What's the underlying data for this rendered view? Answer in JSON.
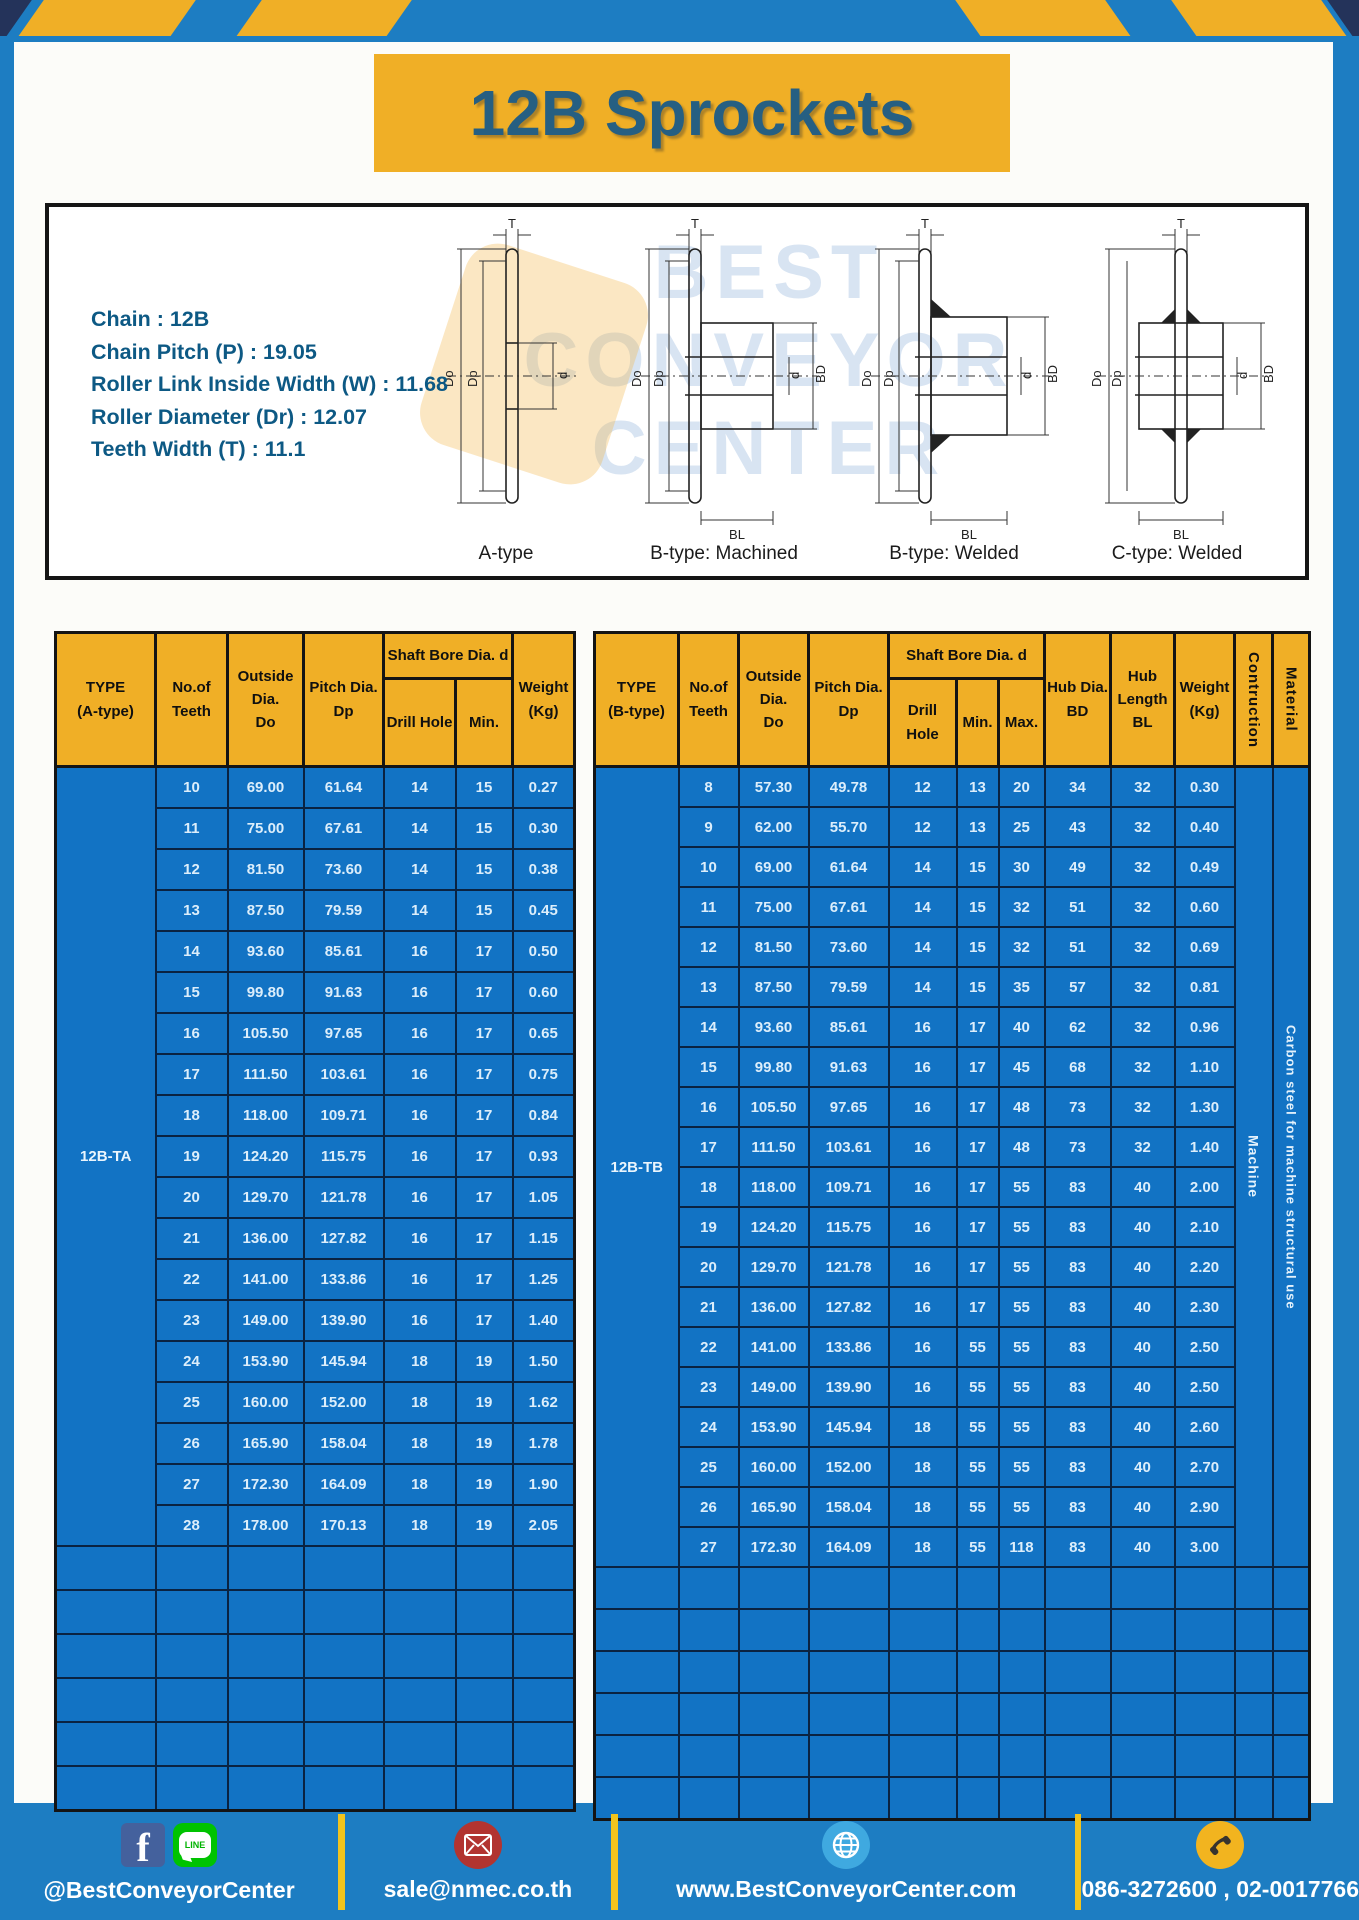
{
  "title": "12B Sprockets",
  "specs": [
    "Chain  :  12B",
    "Chain Pitch (P)  :  19.05",
    "Roller Link Inside Width (W) : 11.68",
    "Roller Diameter (Dr)  : 12.07",
    "Teeth Width (T)  :  11.1"
  ],
  "drawings": {
    "captions": [
      "A-type",
      "B-type: Machined",
      "B-type: Welded",
      "C-type: Welded"
    ],
    "labels": {
      "t": "T",
      "do": "Do",
      "dp": "Dp",
      "d": "d",
      "bd": "BD",
      "bl": "BL"
    },
    "watermark": [
      "BEST",
      "CONVEYOR",
      "CENTER"
    ]
  },
  "table_a": {
    "head": {
      "type": "TYPE\n(A-type)",
      "teeth": "No.of\nTeeth",
      "od": "Outside\nDia.\nDo",
      "pd": "Pitch Dia.\nDp",
      "bore": "Shaft Bore Dia. d",
      "drill": "Drill Hole",
      "min": "Min.",
      "weight": "Weight\n(Kg)"
    },
    "type_label": "12B-TA",
    "col_count": 7,
    "empty_rows": 6,
    "rows": [
      [
        "10",
        "69.00",
        "61.64",
        "14",
        "15",
        "0.27"
      ],
      [
        "11",
        "75.00",
        "67.61",
        "14",
        "15",
        "0.30"
      ],
      [
        "12",
        "81.50",
        "73.60",
        "14",
        "15",
        "0.38"
      ],
      [
        "13",
        "87.50",
        "79.59",
        "14",
        "15",
        "0.45"
      ],
      [
        "14",
        "93.60",
        "85.61",
        "16",
        "17",
        "0.50"
      ],
      [
        "15",
        "99.80",
        "91.63",
        "16",
        "17",
        "0.60"
      ],
      [
        "16",
        "105.50",
        "97.65",
        "16",
        "17",
        "0.65"
      ],
      [
        "17",
        "111.50",
        "103.61",
        "16",
        "17",
        "0.75"
      ],
      [
        "18",
        "118.00",
        "109.71",
        "16",
        "17",
        "0.84"
      ],
      [
        "19",
        "124.20",
        "115.75",
        "16",
        "17",
        "0.93"
      ],
      [
        "20",
        "129.70",
        "121.78",
        "16",
        "17",
        "1.05"
      ],
      [
        "21",
        "136.00",
        "127.82",
        "16",
        "17",
        "1.15"
      ],
      [
        "22",
        "141.00",
        "133.86",
        "16",
        "17",
        "1.25"
      ],
      [
        "23",
        "149.00",
        "139.90",
        "16",
        "17",
        "1.40"
      ],
      [
        "24",
        "153.90",
        "145.94",
        "18",
        "19",
        "1.50"
      ],
      [
        "25",
        "160.00",
        "152.00",
        "18",
        "19",
        "1.62"
      ],
      [
        "26",
        "165.90",
        "158.04",
        "18",
        "19",
        "1.78"
      ],
      [
        "27",
        "172.30",
        "164.09",
        "18",
        "19",
        "1.90"
      ],
      [
        "28",
        "178.00",
        "170.13",
        "18",
        "19",
        "2.05"
      ]
    ]
  },
  "table_b": {
    "head": {
      "type": "TYPE\n(B-type)",
      "teeth": "No.of\nTeeth",
      "od": "Outside\nDia.\nDo",
      "pd": "Pitch Dia.\nDp",
      "bore": "Shaft Bore Dia. d",
      "drill": "Drill Hole",
      "min": "Min.",
      "max": "Max.",
      "bd": "Hub Dia.\nBD",
      "bl": "Hub\nLength\nBL",
      "weight": "Weight\n(Kg)",
      "construction": "Contruction",
      "material": "Material"
    },
    "type_label": "12B-TB",
    "construction": "Machine",
    "material": "Carbon steel for machine structural use",
    "col_count": 12,
    "empty_rows": 6,
    "rows": [
      [
        "8",
        "57.30",
        "49.78",
        "12",
        "13",
        "20",
        "34",
        "32",
        "0.30"
      ],
      [
        "9",
        "62.00",
        "55.70",
        "12",
        "13",
        "25",
        "43",
        "32",
        "0.40"
      ],
      [
        "10",
        "69.00",
        "61.64",
        "14",
        "15",
        "30",
        "49",
        "32",
        "0.49"
      ],
      [
        "11",
        "75.00",
        "67.61",
        "14",
        "15",
        "32",
        "51",
        "32",
        "0.60"
      ],
      [
        "12",
        "81.50",
        "73.60",
        "14",
        "15",
        "32",
        "51",
        "32",
        "0.69"
      ],
      [
        "13",
        "87.50",
        "79.59",
        "14",
        "15",
        "35",
        "57",
        "32",
        "0.81"
      ],
      [
        "14",
        "93.60",
        "85.61",
        "16",
        "17",
        "40",
        "62",
        "32",
        "0.96"
      ],
      [
        "15",
        "99.80",
        "91.63",
        "16",
        "17",
        "45",
        "68",
        "32",
        "1.10"
      ],
      [
        "16",
        "105.50",
        "97.65",
        "16",
        "17",
        "48",
        "73",
        "32",
        "1.30"
      ],
      [
        "17",
        "111.50",
        "103.61",
        "16",
        "17",
        "48",
        "73",
        "32",
        "1.40"
      ],
      [
        "18",
        "118.00",
        "109.71",
        "16",
        "17",
        "55",
        "83",
        "40",
        "2.00"
      ],
      [
        "19",
        "124.20",
        "115.75",
        "16",
        "17",
        "55",
        "83",
        "40",
        "2.10"
      ],
      [
        "20",
        "129.70",
        "121.78",
        "16",
        "17",
        "55",
        "83",
        "40",
        "2.20"
      ],
      [
        "21",
        "136.00",
        "127.82",
        "16",
        "17",
        "55",
        "83",
        "40",
        "2.30"
      ],
      [
        "22",
        "141.00",
        "133.86",
        "16",
        "55",
        "55",
        "83",
        "40",
        "2.50"
      ],
      [
        "23",
        "149.00",
        "139.90",
        "16",
        "55",
        "55",
        "83",
        "40",
        "2.50"
      ],
      [
        "24",
        "153.90",
        "145.94",
        "18",
        "55",
        "55",
        "83",
        "40",
        "2.60"
      ],
      [
        "25",
        "160.00",
        "152.00",
        "18",
        "55",
        "55",
        "83",
        "40",
        "2.70"
      ],
      [
        "26",
        "165.90",
        "158.04",
        "18",
        "55",
        "55",
        "83",
        "40",
        "2.90"
      ],
      [
        "27",
        "172.30",
        "164.09",
        "18",
        "55",
        "118",
        "83",
        "40",
        "3.00"
      ]
    ]
  },
  "footer": {
    "facebook_letter": "f",
    "line_label": "LINE",
    "social_handle": "@BestConveyorCenter",
    "email": "sale@nmec.co.th",
    "website": "www.BestConveyorCenter.com",
    "phones": "086-3272600 , 02-0017766"
  }
}
